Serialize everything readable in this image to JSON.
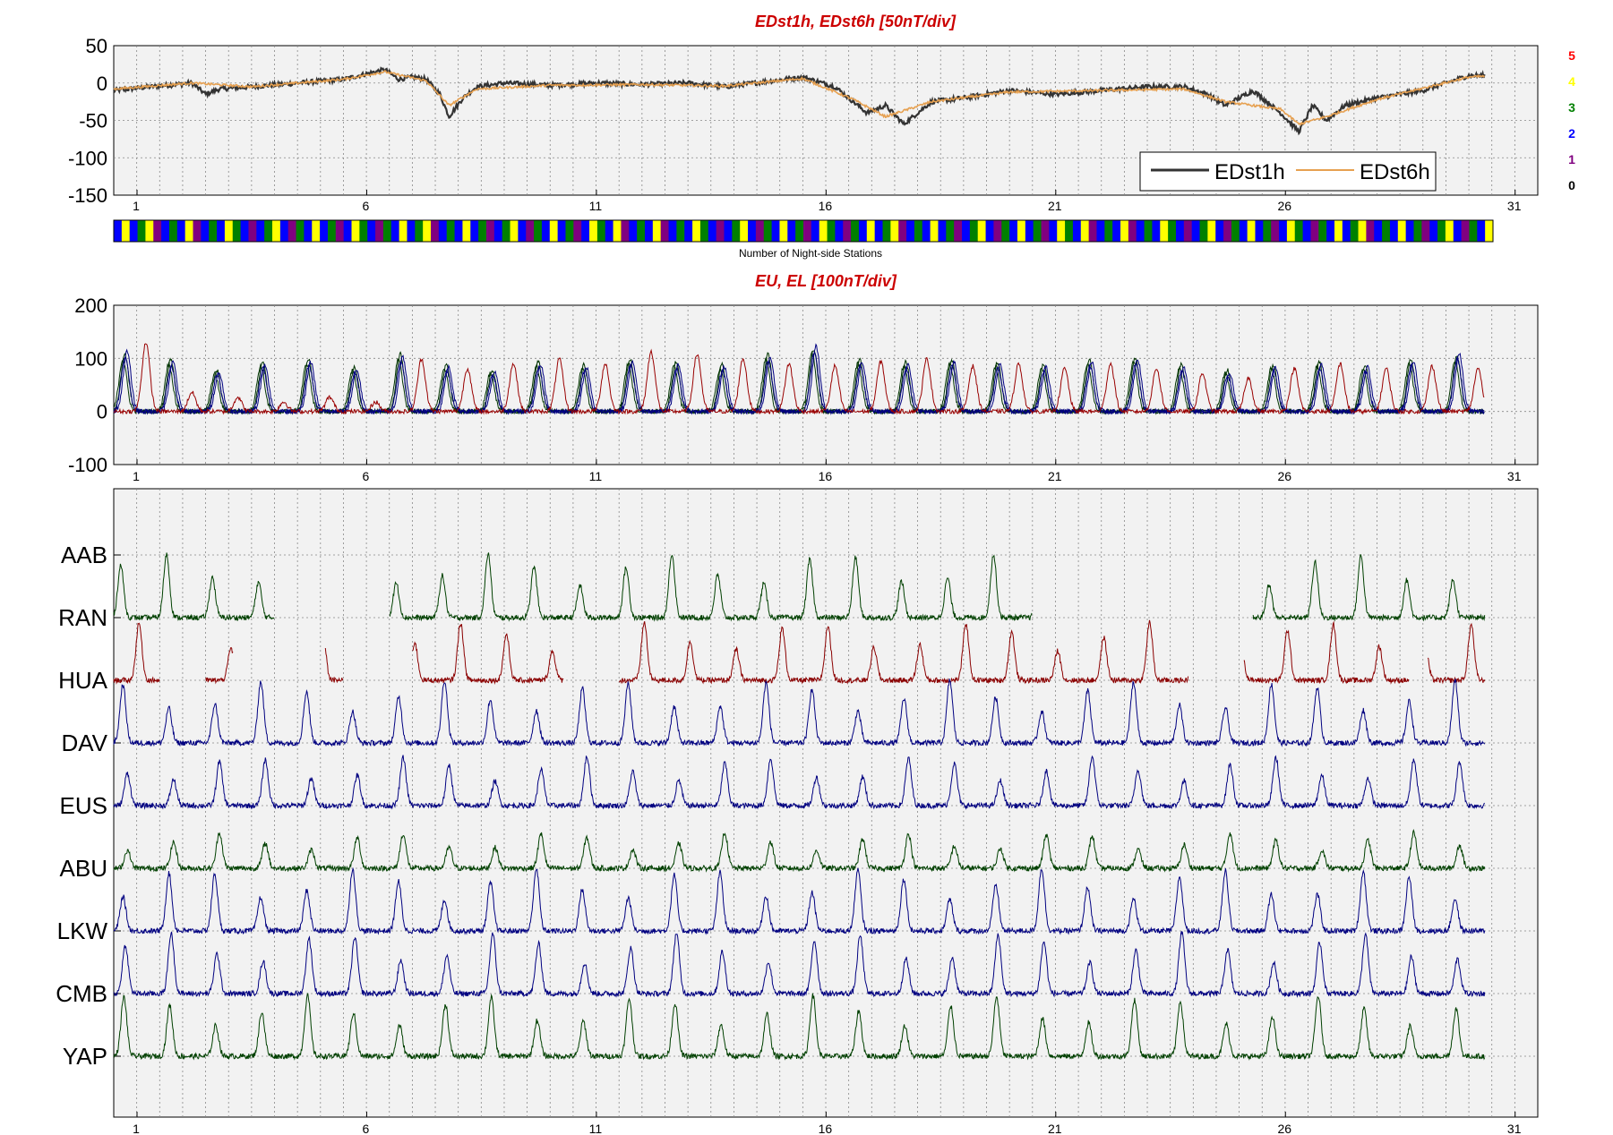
{
  "chart_data": [
    {
      "type": "line",
      "title": "EDst1h, EDst6h [50nT/div]",
      "xlabel": "",
      "ylabel": "",
      "xlim": [
        0,
        31
      ],
      "ylim": [
        -150,
        50
      ],
      "yticks": [
        "50",
        "0",
        "-50",
        "-100",
        "-150"
      ],
      "xticks": [
        "1",
        "6",
        "11",
        "16",
        "21",
        "26",
        "31"
      ],
      "grid": true,
      "legend": {
        "placement": "bottom-right",
        "entries": [
          "EDst1h",
          "EDst6h"
        ]
      },
      "series": [
        {
          "name": "EDst1h",
          "color": "#333333",
          "x": [
            0,
            0.8,
            1.7,
            2.0,
            2.3,
            3.0,
            4.0,
            5.0,
            5.9,
            6.2,
            6.5,
            6.8,
            7.1,
            7.3,
            7.6,
            7.9,
            8.5,
            9.5,
            10.5,
            11.5,
            12.5,
            13.3,
            14.2,
            15.0,
            15.7,
            16.1,
            16.4,
            16.8,
            17.2,
            17.8,
            18.5,
            19.5,
            20.5,
            21.5,
            22.5,
            23.3,
            23.8,
            24.2,
            24.8,
            25.4,
            25.8,
            26.1,
            26.4,
            26.8,
            27.5,
            28.5,
            29.5,
            29.8
          ],
          "y": [
            -10,
            -5,
            0,
            -15,
            -8,
            -5,
            0,
            5,
            18,
            5,
            8,
            5,
            -15,
            -45,
            -20,
            -5,
            0,
            -3,
            0,
            -2,
            0,
            -5,
            2,
            8,
            -5,
            -25,
            -40,
            -30,
            -55,
            -25,
            -20,
            -10,
            -15,
            -10,
            -5,
            -5,
            -15,
            -30,
            -10,
            -40,
            -65,
            -30,
            -50,
            -30,
            -20,
            -10,
            10,
            10
          ]
        },
        {
          "name": "EDst6h",
          "color": "#e6a050",
          "x": [
            0,
            1.7,
            3.0,
            5.0,
            5.9,
            6.8,
            7.3,
            7.9,
            9.5,
            11.5,
            13.3,
            15.0,
            16.1,
            16.8,
            17.8,
            19.5,
            21.5,
            23.3,
            24.2,
            25.4,
            25.8,
            26.4,
            27.5,
            29.5,
            29.8
          ],
          "y": [
            -8,
            0,
            -5,
            5,
            15,
            3,
            -30,
            -8,
            -3,
            -2,
            -4,
            6,
            -22,
            -45,
            -25,
            -12,
            -10,
            -8,
            -25,
            -35,
            -55,
            -45,
            -22,
            8,
            9
          ]
        }
      ]
    },
    {
      "type": "heatmap",
      "title": "Number of Night-side Stations",
      "color_legend": [
        {
          "label": "5",
          "color": "#ff0000"
        },
        {
          "label": "4",
          "color": "#ffff00"
        },
        {
          "label": "3",
          "color": "#008000"
        },
        {
          "label": "2",
          "color": "#0000ff"
        },
        {
          "label": "1",
          "color": "#800080"
        },
        {
          "label": "0",
          "color": "#000000"
        }
      ],
      "sequence": [
        2,
        4,
        2,
        3,
        4,
        1,
        2,
        3,
        2,
        4,
        1,
        2,
        3,
        2,
        4,
        3,
        2,
        1,
        2,
        3,
        4,
        2,
        1,
        3,
        2,
        4,
        2,
        3,
        1,
        2,
        4,
        3,
        2,
        1,
        3,
        2,
        4,
        2,
        3,
        4,
        1,
        2,
        3,
        2,
        4,
        2,
        3,
        1,
        2,
        3,
        4,
        2,
        1,
        3,
        2,
        4,
        2,
        3,
        1,
        2,
        4,
        3,
        2,
        4,
        1,
        2,
        3,
        2,
        4,
        1,
        2,
        3,
        2,
        4,
        3,
        2,
        1,
        2,
        3,
        4,
        2,
        1,
        3,
        2,
        4,
        2,
        3,
        1,
        2,
        4,
        3,
        2,
        1,
        3,
        2,
        4,
        2,
        3,
        4,
        1,
        2,
        3,
        2,
        4,
        2,
        3,
        1,
        2,
        3,
        4,
        2,
        1,
        3,
        2,
        4,
        2,
        3,
        1,
        2,
        4,
        3,
        2,
        4,
        1,
        2,
        3,
        2,
        4,
        1,
        2,
        3,
        2,
        4,
        3,
        2,
        1,
        2,
        3,
        4,
        2,
        1,
        3,
        2,
        4,
        2,
        3,
        1,
        2,
        4,
        3,
        2,
        1,
        3,
        2,
        4,
        2,
        3,
        4,
        1,
        2,
        3,
        2,
        4,
        2,
        3,
        1,
        2,
        3,
        4,
        2,
        1,
        3,
        2,
        4
      ]
    },
    {
      "type": "line",
      "title": "EU, EL   [100nT/div]",
      "xlabel": "",
      "ylabel": "",
      "xlim": [
        0,
        31
      ],
      "ylim": [
        -100,
        200
      ],
      "yticks": [
        "200",
        "100",
        "0",
        "-100"
      ],
      "xticks": [
        "1",
        "6",
        "11",
        "16",
        "21",
        "26",
        "31"
      ],
      "grid": true,
      "series": [
        {
          "color": "#003300",
          "peak_days": [
            0.2,
            1.2,
            2.2,
            3.2,
            4.2,
            5.2,
            6.2,
            7.2,
            8.2,
            9.2,
            10.2,
            11.2,
            12.2,
            13.2,
            14.2,
            15.2,
            16.2,
            17.2,
            18.2,
            19.2,
            20.2,
            21.2,
            22.2,
            23.2,
            24.2,
            25.2,
            26.2,
            27.2,
            28.2,
            29.2
          ],
          "peak_values": [
            110,
            100,
            80,
            95,
            100,
            85,
            110,
            90,
            80,
            95,
            90,
            100,
            95,
            90,
            110,
            120,
            100,
            95,
            100,
            95,
            90,
            100,
            105,
            90,
            80,
            90,
            95,
            90,
            100,
            105
          ]
        },
        {
          "color": "#000080",
          "peak_days": [
            0.25,
            1.25,
            2.25,
            3.25,
            4.25,
            5.25,
            6.25,
            7.25,
            8.25,
            9.25,
            10.25,
            11.25,
            12.25,
            13.25,
            14.25,
            15.25,
            16.25,
            17.25,
            18.25,
            19.25,
            20.25,
            21.25,
            22.25,
            23.25,
            24.25,
            25.25,
            26.25,
            27.25,
            28.25,
            29.25
          ],
          "peak_values": [
            115,
            95,
            75,
            90,
            95,
            80,
            105,
            85,
            75,
            90,
            85,
            95,
            90,
            85,
            105,
            125,
            95,
            90,
            95,
            90,
            85,
            95,
            100,
            85,
            75,
            85,
            90,
            85,
            95,
            110
          ]
        },
        {
          "color": "#990000",
          "peak_days": [
            0.7,
            1.7,
            2.7,
            3.7,
            4.7,
            5.7,
            6.7,
            7.7,
            8.7,
            9.7,
            10.7,
            11.7,
            12.7,
            13.7,
            14.7,
            15.7,
            16.7,
            17.7,
            18.7,
            19.7,
            20.7,
            21.7,
            22.7,
            23.7,
            24.7,
            25.7,
            26.7,
            27.7,
            28.7,
            29.7
          ],
          "peak_values": [
            145,
            40,
            30,
            20,
            30,
            20,
            110,
            90,
            100,
            110,
            100,
            125,
            120,
            110,
            100,
            95,
            105,
            110,
            95,
            100,
            90,
            100,
            90,
            80,
            70,
            90,
            100,
            90,
            95,
            90
          ]
        }
      ]
    },
    {
      "type": "line",
      "title": "",
      "xlim": [
        0,
        31
      ],
      "xticks": [
        "1",
        "6",
        "11",
        "16",
        "21",
        "26",
        "31"
      ],
      "grid": true,
      "stations": [
        {
          "name": "AAB",
          "color": "#004000",
          "gaps": [
            [
              3.5,
              6.0
            ],
            [
              20.0,
              24.8
            ]
          ],
          "amp": 1.0,
          "phase": 0.15
        },
        {
          "name": "RAN",
          "color": "#8b0000",
          "gaps": [
            [
              1.0,
              2.0
            ],
            [
              2.6,
              4.6
            ],
            [
              5.0,
              6.5
            ],
            [
              9.8,
              11.0
            ],
            [
              23.4,
              24.6
            ],
            [
              28.2,
              28.6
            ]
          ],
          "amp": 0.95,
          "phase": 0.55
        },
        {
          "name": "HUA",
          "color": "#000080",
          "gaps": [],
          "amp": 1.0,
          "phase": 0.2
        },
        {
          "name": "DAV",
          "color": "#004000",
          "gaps": [],
          "amp": 0.6,
          "phase": 0.3
        },
        {
          "name": "EUS",
          "color": "#004000",
          "gaps": [],
          "amp": 0.0,
          "phase": 0.3
        },
        {
          "name": "ABU",
          "color": "#000080",
          "gaps": [],
          "amp": 1.0,
          "phase": 0.2
        },
        {
          "name": "LKW",
          "color": "#004000",
          "gaps": [],
          "amp": 1.0,
          "phase": 0.25
        },
        {
          "name": "CMB",
          "color": "#000080",
          "gaps": [
            [
              0,
              31
            ]
          ],
          "amp": 0.0,
          "phase": 0.0
        },
        {
          "name": "YAP",
          "color": "#004000",
          "gaps": [
            [
              0,
              31
            ]
          ],
          "amp": 0.0,
          "phase": 0.0
        }
      ]
    }
  ]
}
